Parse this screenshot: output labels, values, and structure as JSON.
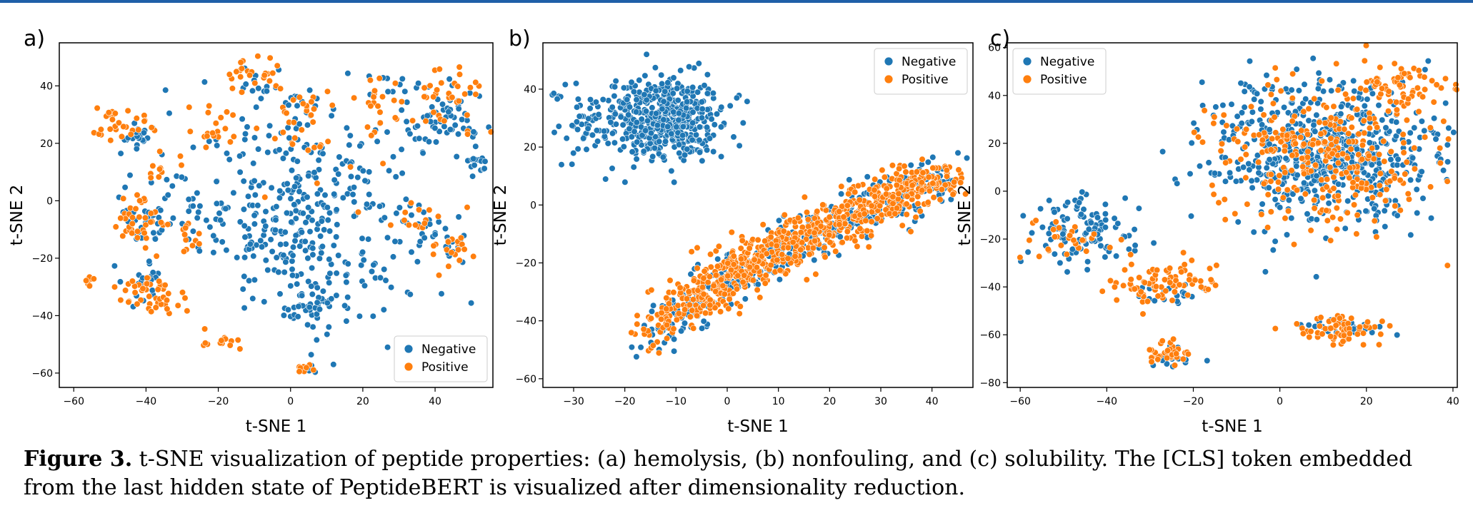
{
  "chart_data": [
    {
      "type": "scatter",
      "panel_label": "a)",
      "xlabel": "t-SNE 1",
      "ylabel": "t-SNE 2",
      "xlim": [
        -64,
        56
      ],
      "ylim": [
        -65,
        55
      ],
      "xticks": [
        -60,
        -40,
        -20,
        0,
        20,
        40
      ],
      "yticks": [
        -60,
        -40,
        -20,
        0,
        20,
        40
      ],
      "grid": false,
      "legend_position": "bottom-right",
      "series": [
        {
          "name": "Negative",
          "color": "#1f77b4",
          "clusters": [
            {
              "x": 5,
              "y": -5,
              "sx": 15,
              "sy": 17,
              "n": 360
            },
            {
              "x": 42,
              "y": 27,
              "sx": 6,
              "sy": 6,
              "n": 60
            },
            {
              "x": 52,
              "y": 13,
              "sx": 1.5,
              "sy": 2,
              "n": 14
            },
            {
              "x": 5,
              "y": -37,
              "sx": 4,
              "sy": 3,
              "n": 35
            },
            {
              "x": -42,
              "y": 22,
              "sx": 3,
              "sy": 2,
              "n": 18
            },
            {
              "x": -40,
              "y": -6,
              "sx": 3,
              "sy": 5,
              "n": 30
            },
            {
              "x": -40,
              "y": -28,
              "sx": 3,
              "sy": 4,
              "n": 20
            },
            {
              "x": 5,
              "y": -58,
              "sx": 1.5,
              "sy": 1,
              "n": 8
            },
            {
              "x": -10,
              "y": 40,
              "sx": 4,
              "sy": 3,
              "n": 12
            },
            {
              "x": 36,
              "y": -8,
              "sx": 3,
              "sy": 3,
              "n": 12
            },
            {
              "x": 45,
              "y": -15,
              "sx": 3,
              "sy": 3,
              "n": 10
            },
            {
              "x": -30,
              "y": 5,
              "sx": 8,
              "sy": 12,
              "n": 30
            },
            {
              "x": 25,
              "y": 40,
              "sx": 5,
              "sy": 3,
              "n": 12
            },
            {
              "x": 3,
              "y": 32,
              "sx": 4,
              "sy": 5,
              "n": 15
            }
          ]
        },
        {
          "name": "Positive",
          "color": "#ff7f0e",
          "clusters": [
            {
              "x": -42,
              "y": -6,
              "sx": 4,
              "sy": 5,
              "n": 40
            },
            {
              "x": -38,
              "y": -33,
              "sx": 5,
              "sy": 4,
              "n": 45
            },
            {
              "x": -45,
              "y": 25,
              "sx": 5,
              "sy": 2,
              "n": 22
            },
            {
              "x": -50,
              "y": 29,
              "sx": 2,
              "sy": 1.5,
              "n": 8
            },
            {
              "x": -56,
              "y": -28,
              "sx": 1,
              "sy": 2,
              "n": 7
            },
            {
              "x": -10,
              "y": 43,
              "sx": 4,
              "sy": 4,
              "n": 24
            },
            {
              "x": 4,
              "y": 29,
              "sx": 4,
              "sy": 6,
              "n": 24
            },
            {
              "x": 42,
              "y": 36,
              "sx": 6,
              "sy": 6,
              "n": 38
            },
            {
              "x": 45,
              "y": -17,
              "sx": 3,
              "sy": 3,
              "n": 20
            },
            {
              "x": 36,
              "y": -8,
              "sx": 3,
              "sy": 3,
              "n": 12
            },
            {
              "x": -19,
              "y": -49,
              "sx": 3,
              "sy": 1.5,
              "n": 14
            },
            {
              "x": 4,
              "y": -58,
              "sx": 1.5,
              "sy": 1,
              "n": 8
            },
            {
              "x": -20,
              "y": 25,
              "sx": 4,
              "sy": 4,
              "n": 20
            },
            {
              "x": 25,
              "y": 35,
              "sx": 4,
              "sy": 5,
              "n": 18
            },
            {
              "x": -30,
              "y": -15,
              "sx": 5,
              "sy": 5,
              "n": 14
            },
            {
              "x": -35,
              "y": 10,
              "sx": 3,
              "sy": 3,
              "n": 10
            },
            {
              "x": 15,
              "y": 15,
              "sx": 10,
              "sy": 10,
              "n": 15
            }
          ]
        }
      ]
    },
    {
      "type": "scatter",
      "panel_label": "b)",
      "xlabel": "t-SNE 1",
      "ylabel": "t-SNE 2",
      "xlim": [
        -36,
        48
      ],
      "ylim": [
        -63,
        56
      ],
      "xticks": [
        -30,
        -20,
        -10,
        0,
        10,
        20,
        30,
        40
      ],
      "yticks": [
        -60,
        -40,
        -20,
        0,
        20,
        40
      ],
      "grid": false,
      "legend_position": "top-right",
      "series": [
        {
          "name": "Negative",
          "color": "#1f77b4",
          "clusters": [
            {
              "x": -13,
              "y": 30,
              "sx": 6,
              "sy": 7,
              "n": 520
            },
            {
              "x": -29,
              "y": 27,
              "sx": 2,
              "sy": 6,
              "n": 30
            },
            {
              "x": -33,
              "y": 37,
              "sx": 1,
              "sy": 1,
              "n": 5
            }
          ],
          "band": {
            "x0": -15,
            "y0": -48,
            "x1": 42,
            "y1": 9,
            "width": 4,
            "n": 400
          }
        },
        {
          "name": "Positive",
          "color": "#ff7f0e",
          "band": {
            "x0": -14,
            "y0": -45,
            "x1": 43,
            "y1": 10,
            "width": 4.5,
            "n": 760
          }
        }
      ]
    },
    {
      "type": "scatter",
      "panel_label": "c)",
      "xlabel": "t-SNE 1",
      "ylabel": "t-SNE 2",
      "xlim": [
        -63,
        41
      ],
      "ylim": [
        -82,
        62
      ],
      "xticks": [
        -60,
        -40,
        -20,
        0,
        20,
        40
      ],
      "yticks": [
        -80,
        -60,
        -40,
        -20,
        0,
        20,
        40,
        60
      ],
      "grid": false,
      "legend_position": "top-left",
      "series": [
        {
          "name": "Negative",
          "color": "#1f77b4",
          "clusters": [
            {
              "x": 10,
              "y": 16,
              "sx": 13,
              "sy": 15,
              "n": 620
            },
            {
              "x": -46,
              "y": -17,
              "sx": 6,
              "sy": 7,
              "n": 110
            },
            {
              "x": 17,
              "y": -57,
              "sx": 5,
              "sy": 2,
              "n": 30
            },
            {
              "x": -25,
              "y": -70,
              "sx": 2,
              "sy": 2,
              "n": 15
            },
            {
              "x": -25,
              "y": -43,
              "sx": 5,
              "sy": 3,
              "n": 20
            }
          ]
        },
        {
          "name": "Positive",
          "color": "#ff7f0e",
          "clusters": [
            {
              "x": 10,
              "y": 16,
              "sx": 13,
              "sy": 15,
              "n": 300
            },
            {
              "x": 28,
              "y": 45,
              "sx": 6,
              "sy": 5,
              "n": 60
            },
            {
              "x": -27,
              "y": -38,
              "sx": 6,
              "sy": 5,
              "n": 80
            },
            {
              "x": 14,
              "y": -58,
              "sx": 5,
              "sy": 3,
              "n": 60
            },
            {
              "x": -25,
              "y": -68,
              "sx": 3,
              "sy": 3,
              "n": 35
            },
            {
              "x": -50,
              "y": -20,
              "sx": 5,
              "sy": 5,
              "n": 30
            }
          ]
        }
      ]
    }
  ],
  "caption": {
    "figure_label": "Figure 3.",
    "text": " t-SNE visualization of peptide properties: (a) hemolysis, (b) nonfouling, and (c) solubility. The [CLS] token embedded from the last hidden state of PeptideBERT is visualized after dimensionality reduction."
  }
}
